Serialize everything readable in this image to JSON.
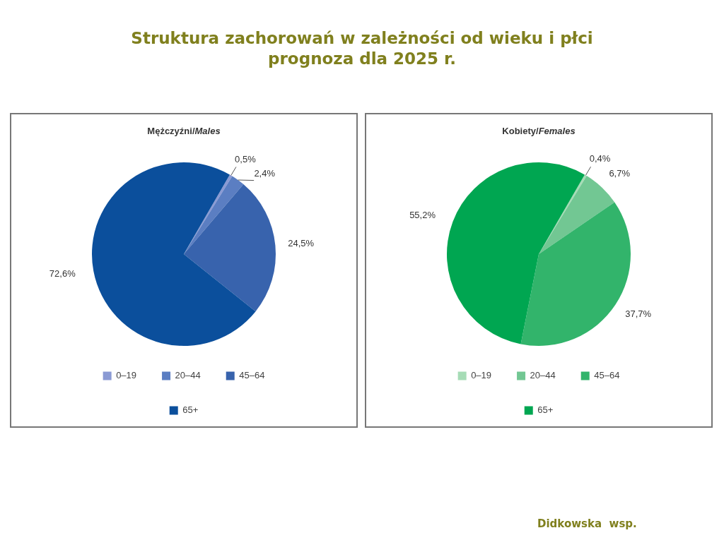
{
  "chart_data": [
    {
      "type": "pie",
      "title": "Struktura zachorowań w zależności od wieku i płci\nprognoza dla 2025 r.",
      "subtitle": "Mężczyźni/Males",
      "categories": [
        "0–19",
        "20–44",
        "45–64",
        "65+"
      ],
      "values": [
        0.5,
        2.4,
        24.5,
        72.6
      ],
      "colors": [
        "#8a9ad4",
        "#5b7ec2",
        "#3863ad",
        "#0b4f9c"
      ],
      "value_labels": [
        "0,5%",
        "2,4%",
        "24,5%",
        "72,6%"
      ],
      "legend": "bottom"
    },
    {
      "type": "pie",
      "subtitle": "Kobiety/Females",
      "categories": [
        "0–19",
        "20–44",
        "45–64",
        "65+"
      ],
      "values": [
        0.4,
        6.7,
        37.7,
        55.2
      ],
      "colors": [
        "#a6dcb6",
        "#72c793",
        "#32b46b",
        "#00a651"
      ],
      "value_labels": [
        "0,4%",
        "6,7%",
        "37,7%",
        "55,2%"
      ],
      "legend": "bottom",
      "annotations": [
        "Didkowska  wsp."
      ]
    }
  ]
}
